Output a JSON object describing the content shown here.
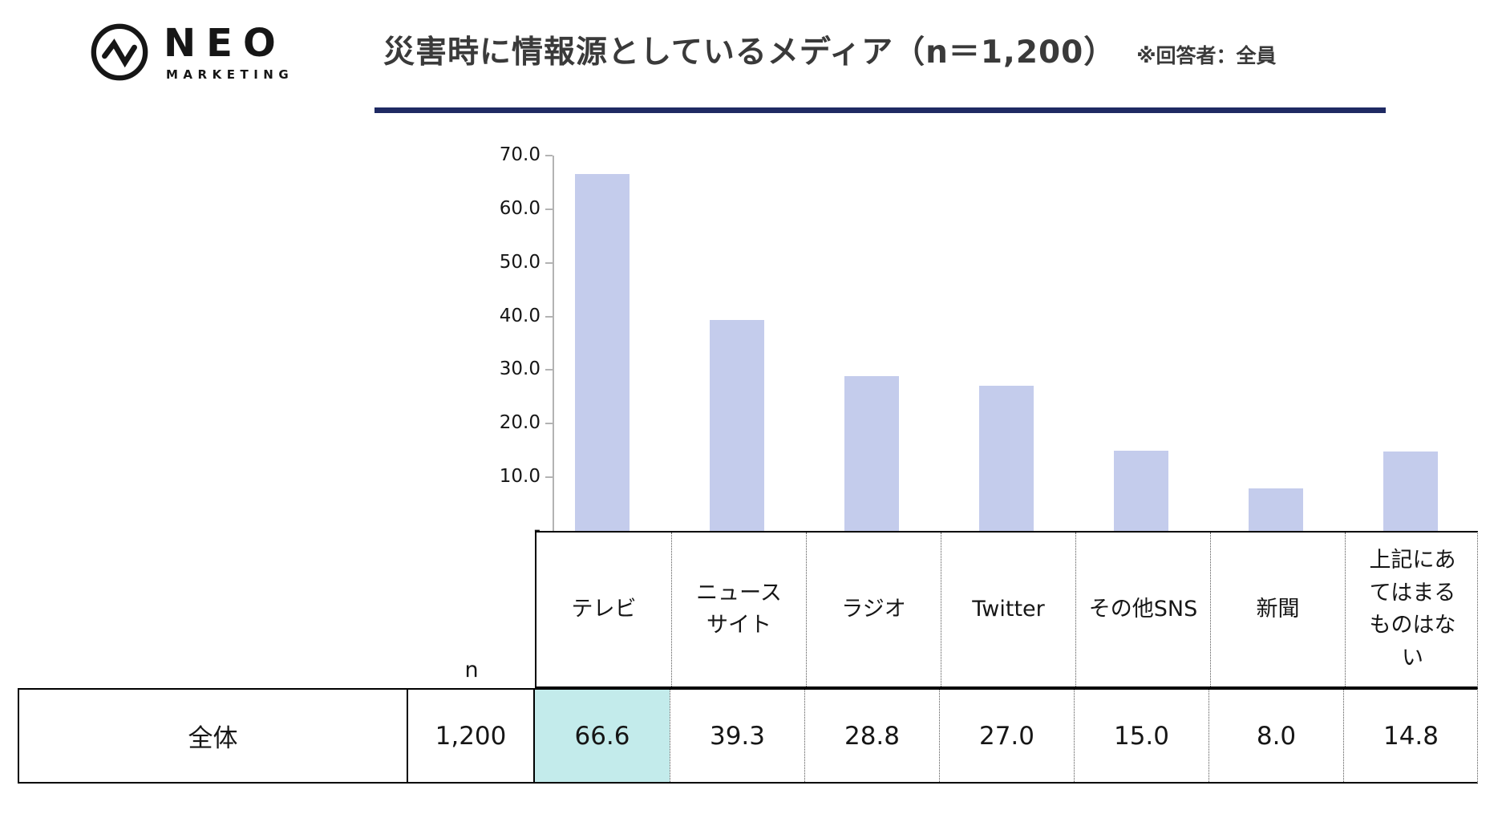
{
  "logo": {
    "name": "NEO",
    "sub": "MARKETING"
  },
  "header": {
    "title": "災害時に情報源としているメディア（n＝1,200）",
    "note": "※回答者：全員"
  },
  "chart_data": {
    "type": "bar",
    "categories": [
      "テレビ",
      "ニュースサイト",
      "ラジオ",
      "Twitter",
      "その他SNS",
      "新聞",
      "上記にあてはまるものはない"
    ],
    "values": [
      66.6,
      39.3,
      28.8,
      27.0,
      15.0,
      8.0,
      14.8
    ],
    "title": "災害時に情報源としているメディア（n＝1,200）",
    "xlabel": "",
    "ylabel": "",
    "ylim": [
      0,
      70
    ],
    "ytick_step": 10,
    "yticks": [
      {
        "value": 70,
        "label": "70.0"
      },
      {
        "value": 60,
        "label": "60.0"
      },
      {
        "value": 50,
        "label": "50.0"
      },
      {
        "value": 40,
        "label": "40.0"
      },
      {
        "value": 30,
        "label": "30.0"
      },
      {
        "value": 20,
        "label": "20.0"
      },
      {
        "value": 10,
        "label": "10.0"
      },
      {
        "value": 0,
        "label": "-"
      }
    ],
    "grid": false,
    "legend": false,
    "bar_color": "#C4CCEC",
    "axis_color": "#B3B3B3"
  },
  "table": {
    "n_label": "n",
    "row_label": "全体",
    "n_value": "1,200",
    "column_headers": [
      "テレビ",
      "ニュース\nサイト",
      "ラジオ",
      "Twitter",
      "その他SNS",
      "新聞",
      "上記にあ\nてはまる\nものはな\nい"
    ],
    "values": [
      "66.6",
      "39.3",
      "28.8",
      "27.0",
      "15.0",
      "8.0",
      "14.8"
    ],
    "highlight_index": 0,
    "highlight_color": "#C3EBEB"
  },
  "colors": {
    "accent_underline": "#1F2A63",
    "bar": "#C4CCEC",
    "axis": "#B3B3B3",
    "highlight": "#C3EBEB",
    "text": "#161616"
  }
}
